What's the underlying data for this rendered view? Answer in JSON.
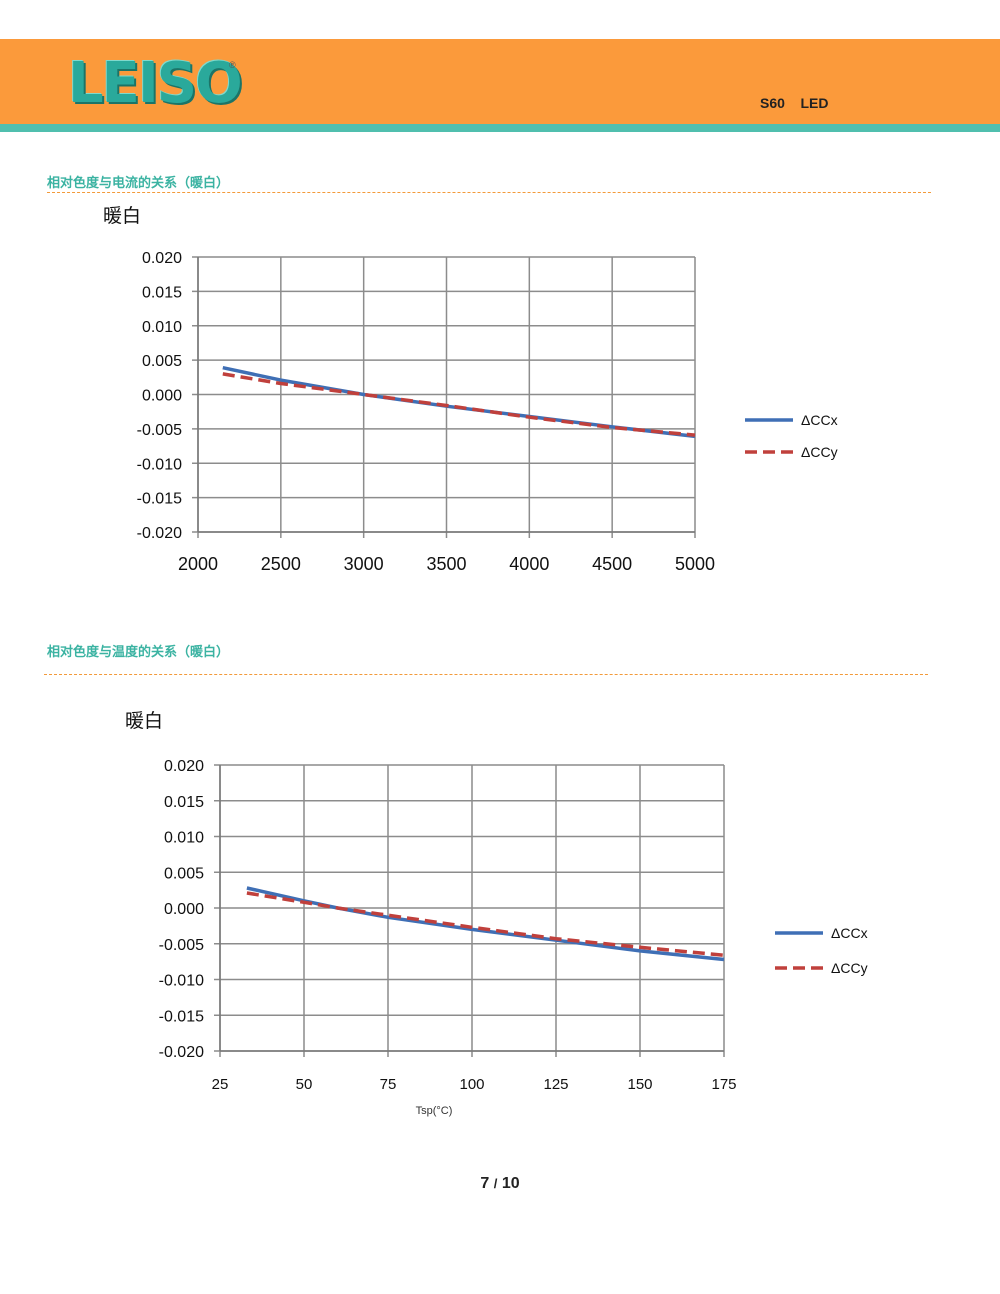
{
  "header": {
    "logo_text": "LEISO",
    "logo_mark": "®",
    "model": "S60    LED"
  },
  "sections": [
    {
      "title": "相对色度与电流的关系（暖白）"
    },
    {
      "title": "相对色度与温度的关系（暖白）"
    }
  ],
  "chart_data": [
    {
      "type": "line",
      "title": "暖白",
      "xlabel": "",
      "ylabel": "",
      "x_ticks": [
        "2000",
        "2500",
        "3000",
        "3500",
        "4000",
        "4500",
        "5000"
      ],
      "y_ticks": [
        "0.020",
        "0.015",
        "0.010",
        "0.005",
        "0.000",
        "-0.005",
        "-0.010",
        "-0.015",
        "-0.020"
      ],
      "xlim": [
        2000,
        5000
      ],
      "ylim": [
        -0.02,
        0.02
      ],
      "grid": true,
      "legend": "right",
      "series": [
        {
          "name": "ΔCCx",
          "color": "#3f6fb5",
          "style": "solid",
          "x": [
            2150,
            2500,
            3000,
            3500,
            4000,
            4500,
            5000
          ],
          "y": [
            0.0039,
            0.0021,
            0.0,
            -0.0017,
            -0.0032,
            -0.0047,
            -0.0061
          ]
        },
        {
          "name": "ΔCCy",
          "color": "#c0403c",
          "style": "dashed",
          "x": [
            2150,
            2500,
            3000,
            3500,
            4000,
            4500,
            5000
          ],
          "y": [
            0.003,
            0.0016,
            0.0,
            -0.0016,
            -0.0033,
            -0.0048,
            -0.0059
          ]
        }
      ]
    },
    {
      "type": "line",
      "title": "暖白",
      "xlabel": "Tsp(°C)",
      "ylabel": "",
      "x_ticks": [
        "25",
        "50",
        "75",
        "100",
        "125",
        "150",
        "175"
      ],
      "y_ticks": [
        "0.020",
        "0.015",
        "0.010",
        "0.005",
        "0.000",
        "-0.005",
        "-0.010",
        "-0.015",
        "-0.020"
      ],
      "xlim": [
        25,
        175
      ],
      "ylim": [
        -0.02,
        0.02
      ],
      "grid": true,
      "legend": "right",
      "series": [
        {
          "name": "ΔCCx",
          "color": "#3f6fb5",
          "style": "solid",
          "x": [
            33,
            50,
            60,
            75,
            100,
            125,
            150,
            175
          ],
          "y": [
            0.0028,
            0.001,
            0.0,
            -0.0013,
            -0.003,
            -0.0045,
            -0.006,
            -0.0072
          ]
        },
        {
          "name": "ΔCCy",
          "color": "#c0403c",
          "style": "dashed",
          "x": [
            33,
            50,
            60,
            75,
            100,
            125,
            150,
            175
          ],
          "y": [
            0.0021,
            0.0008,
            0.0,
            -0.001,
            -0.0027,
            -0.0043,
            -0.0055,
            -0.0066
          ]
        }
      ]
    }
  ],
  "footer": {
    "page_current": "7",
    "page_sep": "/",
    "page_total": "10"
  }
}
